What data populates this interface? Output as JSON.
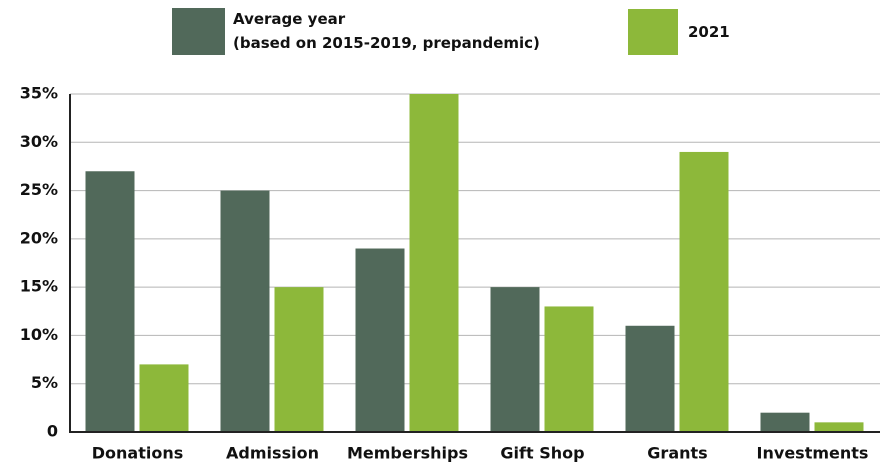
{
  "chart_data": {
    "type": "bar",
    "categories": [
      "Donations",
      "Admission",
      "Memberships",
      "Gift Shop",
      "Grants",
      "Investments"
    ],
    "series": [
      {
        "name": "Average year\n(based on 2015-2019, prepandemic)",
        "color": "#51695a",
        "values": [
          27,
          25,
          19,
          15,
          11,
          2
        ]
      },
      {
        "name": "2021",
        "color": "#8db83a",
        "values": [
          7,
          15,
          35,
          13,
          29,
          1
        ]
      }
    ],
    "ylim": [
      0,
      35
    ],
    "yticks": [
      0,
      {
        "value": 5,
        "label": "5%"
      },
      {
        "value": 10,
        "label": "10%"
      },
      {
        "value": 15,
        "label": "15%"
      },
      {
        "value": 20,
        "label": "20%"
      },
      {
        "value": 25,
        "label": "25%"
      },
      {
        "value": 30,
        "label": "30%"
      },
      {
        "value": 35,
        "label": "35%"
      }
    ],
    "grid": true
  }
}
